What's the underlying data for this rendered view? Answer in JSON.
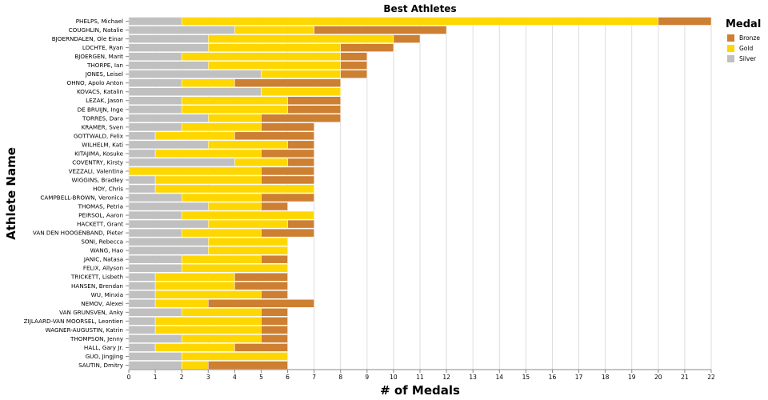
{
  "chart_data": {
    "type": "bar",
    "orientation": "horizontal",
    "stacked": true,
    "title": "Best Athletes",
    "xlabel": "# of Medals",
    "ylabel": "Athlete Name",
    "xlim": [
      0,
      22
    ],
    "xticks": [
      "0",
      "1",
      "2",
      "3",
      "4",
      "5",
      "6",
      "7",
      "8",
      "9",
      "10",
      "11",
      "12",
      "13",
      "14",
      "15",
      "16",
      "17",
      "18",
      "19",
      "20",
      "21",
      "22"
    ],
    "grid": true,
    "legend": {
      "title": "Medal",
      "position": "top-right",
      "items": [
        {
          "name": "Bronze",
          "color": "#cd7f32"
        },
        {
          "name": "Gold",
          "color": "#ffd700"
        },
        {
          "name": "Silver",
          "color": "#c0c0c0"
        }
      ]
    },
    "stack_order": [
      "Silver",
      "Gold",
      "Bronze"
    ],
    "categories": [
      "PHELPS, Michael",
      "COUGHLIN, Natalie",
      "BJOERNDALEN, Ole Einar",
      "LOCHTE, Ryan",
      "BJOERGEN, Marit",
      "THORPE, Ian",
      "JONES, Leisel",
      "OHNO, Apolo Anton",
      "KOVACS, Katalin",
      "LEZAK, Jason",
      "DE BRUIJN, Inge",
      "TORRES, Dara",
      "KRAMER, Sven",
      "GOTTWALD, Felix",
      "WILHELM, Kati",
      "KITAJIMA, Kosuke",
      "COVENTRY, Kirsty",
      "VEZZALI, Valentina",
      "WIGGINS, Bradley",
      "HOY, Chris",
      "CAMPBELL-BROWN, Veronica",
      "THOMAS, Petria",
      "PEIRSOL, Aaron",
      "HACKETT, Grant",
      "VAN DEN HOOGENBAND, Pieter",
      "SONI, Rebecca",
      "WANG, Hao",
      "JANIC, Natasa",
      "FELIX, Allyson",
      "TRICKETT, Lisbeth",
      "HANSEN, Brendan",
      "WU, Minxia",
      "NEMOV, Alexei",
      "VAN GRUNSVEN, Anky",
      "ZIJLAARD-VAN MOORSEL, Leontien",
      "WAGNER-AUGUSTIN, Katrin",
      "THOMPSON, Jenny",
      "HALL, Gary Jr.",
      "GUO, Jingjing",
      "SAUTIN, Dmitry"
    ],
    "series": [
      {
        "name": "Silver",
        "color": "#c0c0c0",
        "values": [
          2,
          4,
          3,
          3,
          2,
          3,
          5,
          2,
          5,
          2,
          2,
          3,
          2,
          1,
          3,
          1,
          4,
          0,
          1,
          1,
          2,
          3,
          2,
          3,
          2,
          3,
          3,
          2,
          2,
          1,
          1,
          1,
          1,
          2,
          1,
          1,
          2,
          1,
          2,
          2
        ]
      },
      {
        "name": "Gold",
        "color": "#ffd700",
        "values": [
          18,
          3,
          7,
          5,
          6,
          5,
          3,
          2,
          3,
          4,
          4,
          2,
          3,
          3,
          3,
          4,
          2,
          5,
          4,
          6,
          3,
          2,
          5,
          3,
          3,
          3,
          3,
          3,
          4,
          3,
          3,
          4,
          2,
          3,
          4,
          4,
          3,
          3,
          4,
          1
        ]
      },
      {
        "name": "Bronze",
        "color": "#cd7f32",
        "values": [
          2,
          5,
          1,
          2,
          1,
          1,
          1,
          4,
          0,
          2,
          2,
          3,
          2,
          3,
          1,
          2,
          1,
          2,
          2,
          0,
          2,
          1,
          0,
          1,
          2,
          0,
          0,
          1,
          0,
          2,
          2,
          1,
          4,
          1,
          1,
          1,
          1,
          2,
          0,
          3
        ]
      }
    ]
  }
}
